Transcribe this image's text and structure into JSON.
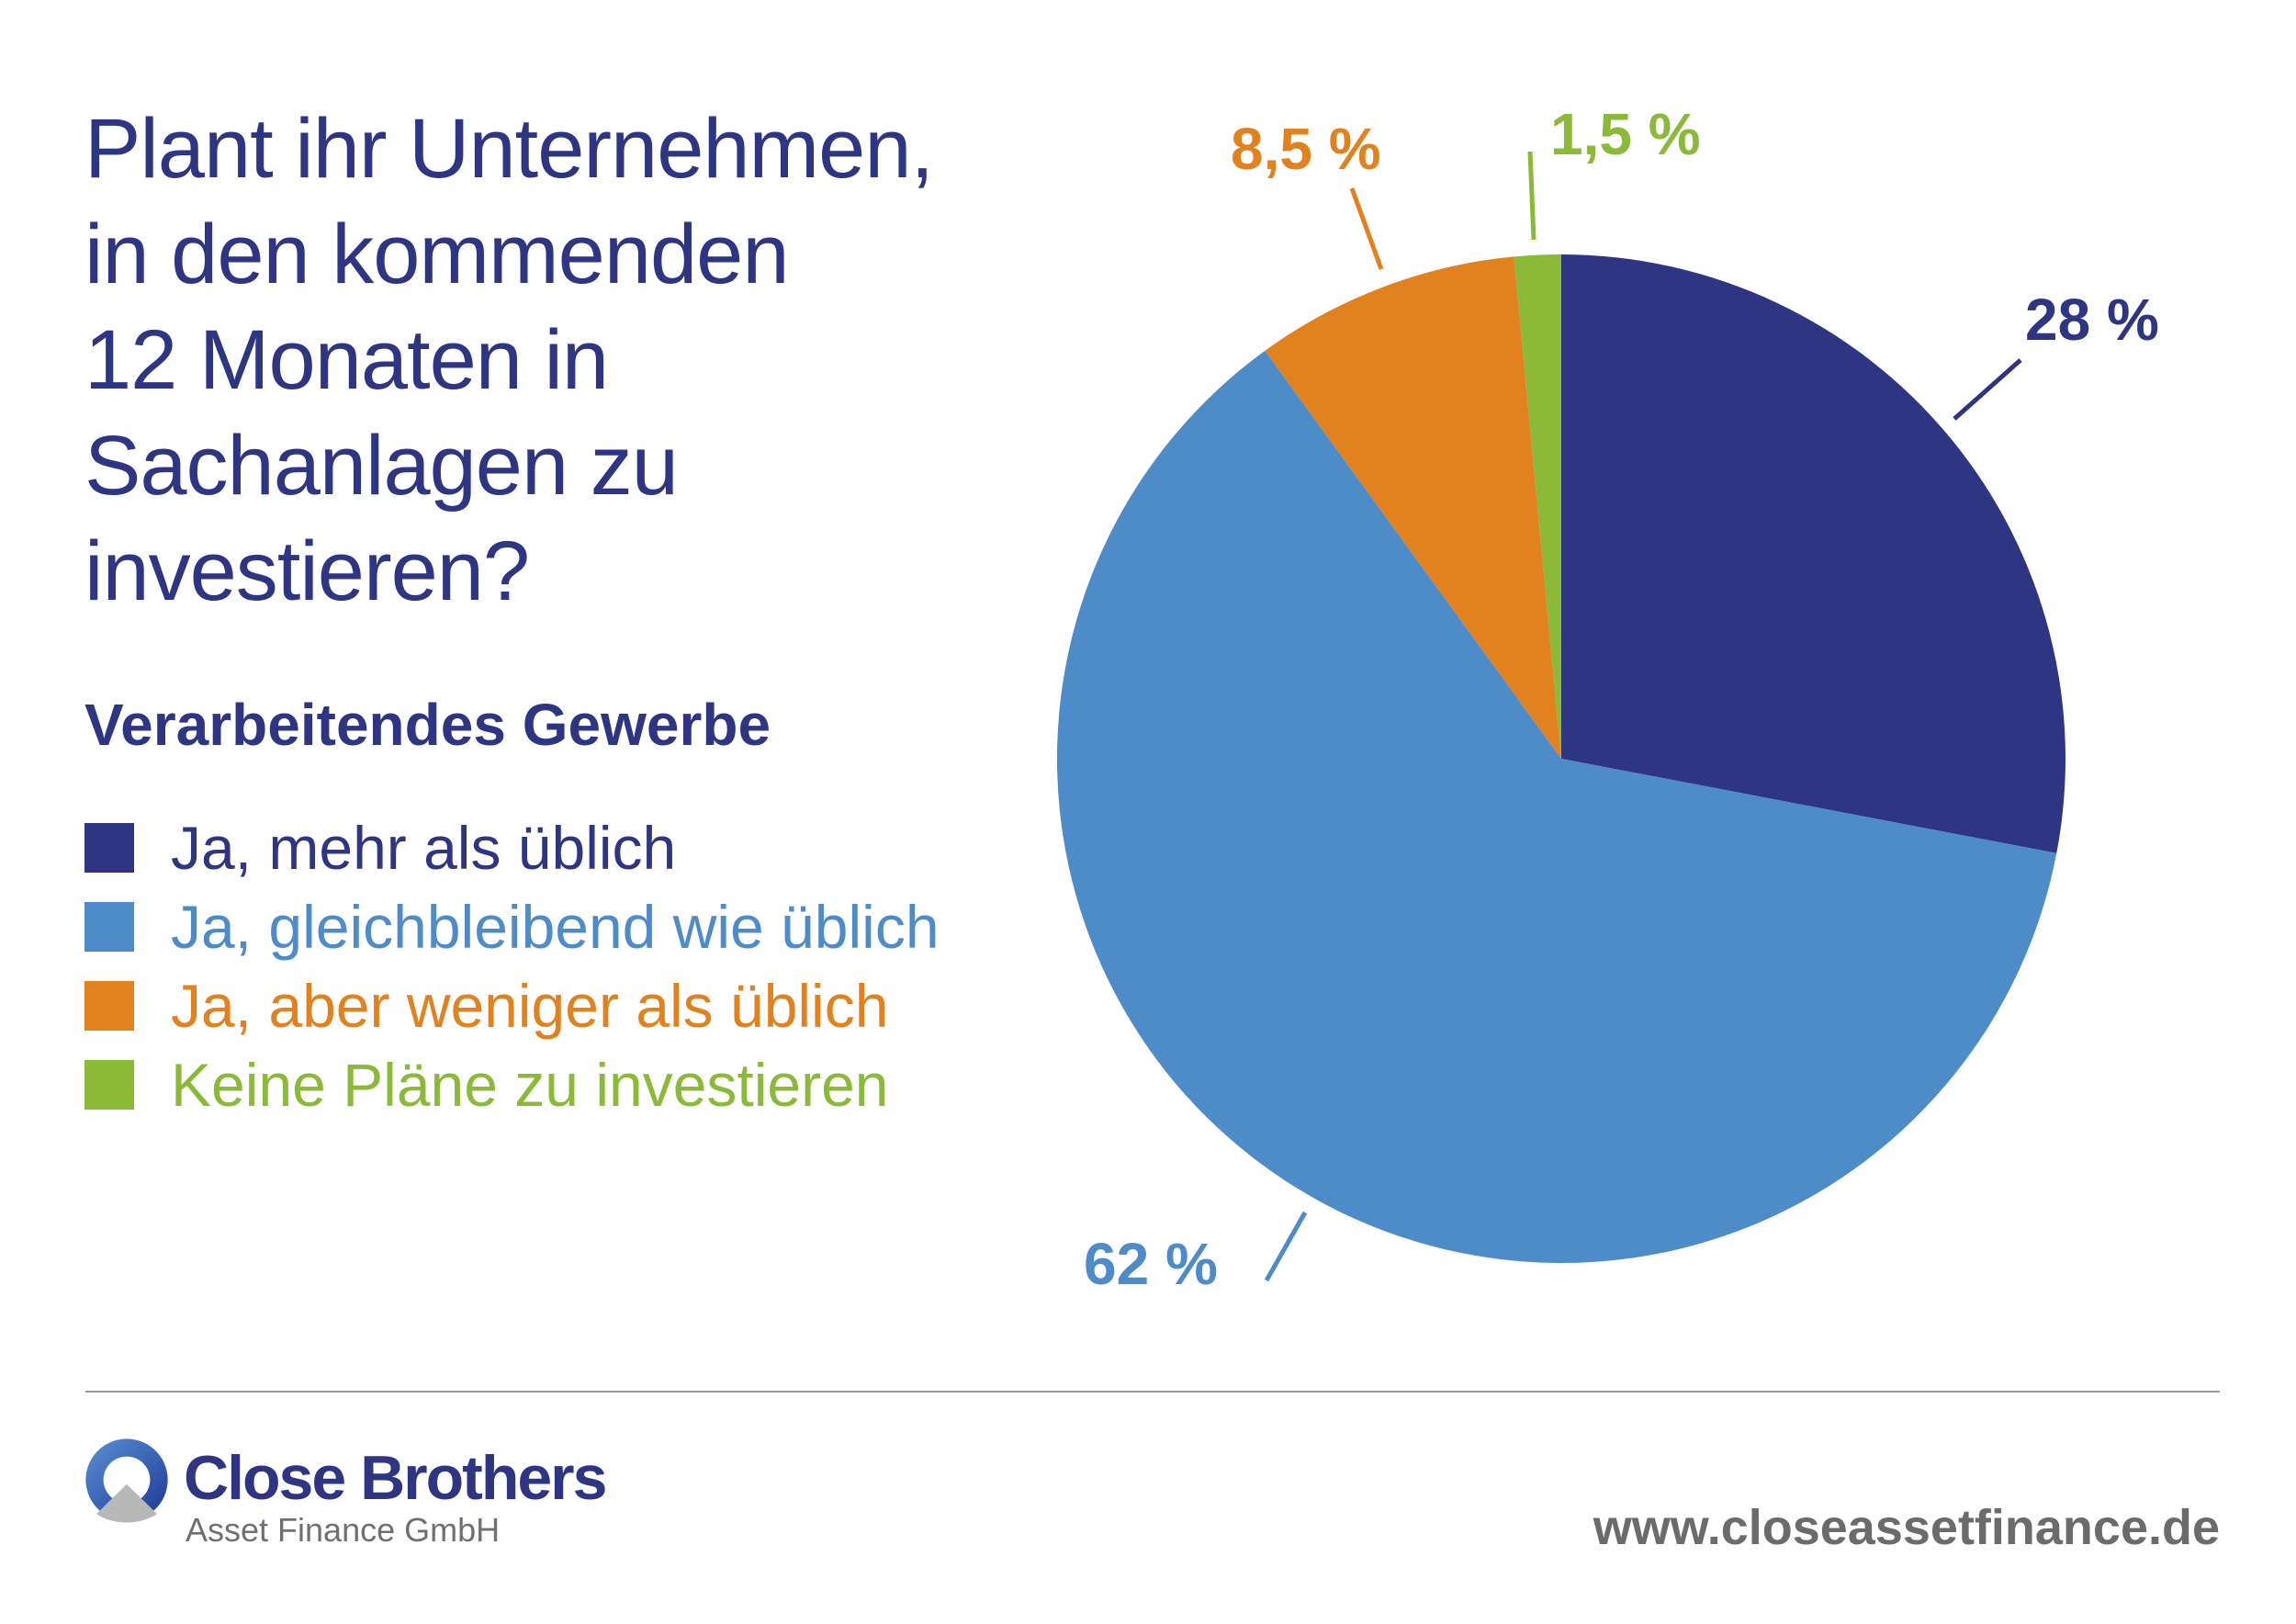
{
  "chart_data": {
    "type": "pie",
    "title": "Plant ihr Unternehmen, in den kommenden 12 Monaten in Sachanlagen zu investieren?",
    "title_lines": [
      "Plant ihr Unternehmen,",
      "in den kommenden",
      "12 Monaten in",
      "Sachanlagen zu",
      "investieren?"
    ],
    "subtitle": "Verarbeitendes Gewerbe",
    "legend_placement": "left",
    "slices": [
      {
        "name": "Ja, mehr als üblich",
        "value": 28,
        "label": "28 %",
        "color": "#2e3582"
      },
      {
        "name": "Ja, gleichbleibend wie üblich",
        "value": 62,
        "label": "62 %",
        "color": "#4d8bc9"
      },
      {
        "name": "Ja, aber weniger als üblich",
        "value": 8.5,
        "label": "8,5 %",
        "color": "#e2821e"
      },
      {
        "name": "Keine Pläne zu investieren",
        "value": 1.5,
        "label": "1,5 %",
        "color": "#8aba38"
      }
    ]
  },
  "footer": {
    "brand": "Close Brothers",
    "brand_sub": "Asset Finance GmbH",
    "url": "www.closeassetfinance.de"
  }
}
